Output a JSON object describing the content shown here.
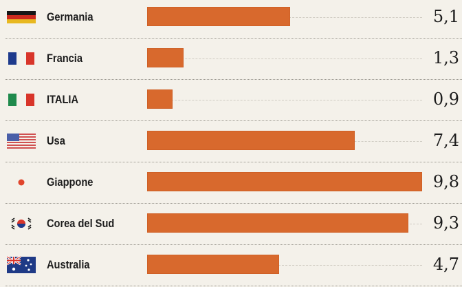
{
  "chart_data": {
    "type": "bar",
    "orientation": "horizontal",
    "categories": [
      "Germania",
      "Francia",
      "ITALIA",
      "Usa",
      "Giappone",
      "Corea del Sud",
      "Australia"
    ],
    "values": [
      5.1,
      1.3,
      0.9,
      7.4,
      9.8,
      9.3,
      4.7
    ],
    "value_labels": [
      "5,1",
      "1,3",
      "0,9",
      "7,4",
      "9,8",
      "9,3",
      "4,7"
    ],
    "flags": [
      "germany-flag-icon",
      "france-flag-icon",
      "italy-flag-icon",
      "usa-flag-icon",
      "japan-flag-icon",
      "south-korea-flag-icon",
      "australia-flag-icon"
    ],
    "title": "",
    "xlabel": "",
    "ylabel": "",
    "xlim": [
      0,
      9.8
    ],
    "grid": false,
    "bar_color": "#d8692d"
  }
}
